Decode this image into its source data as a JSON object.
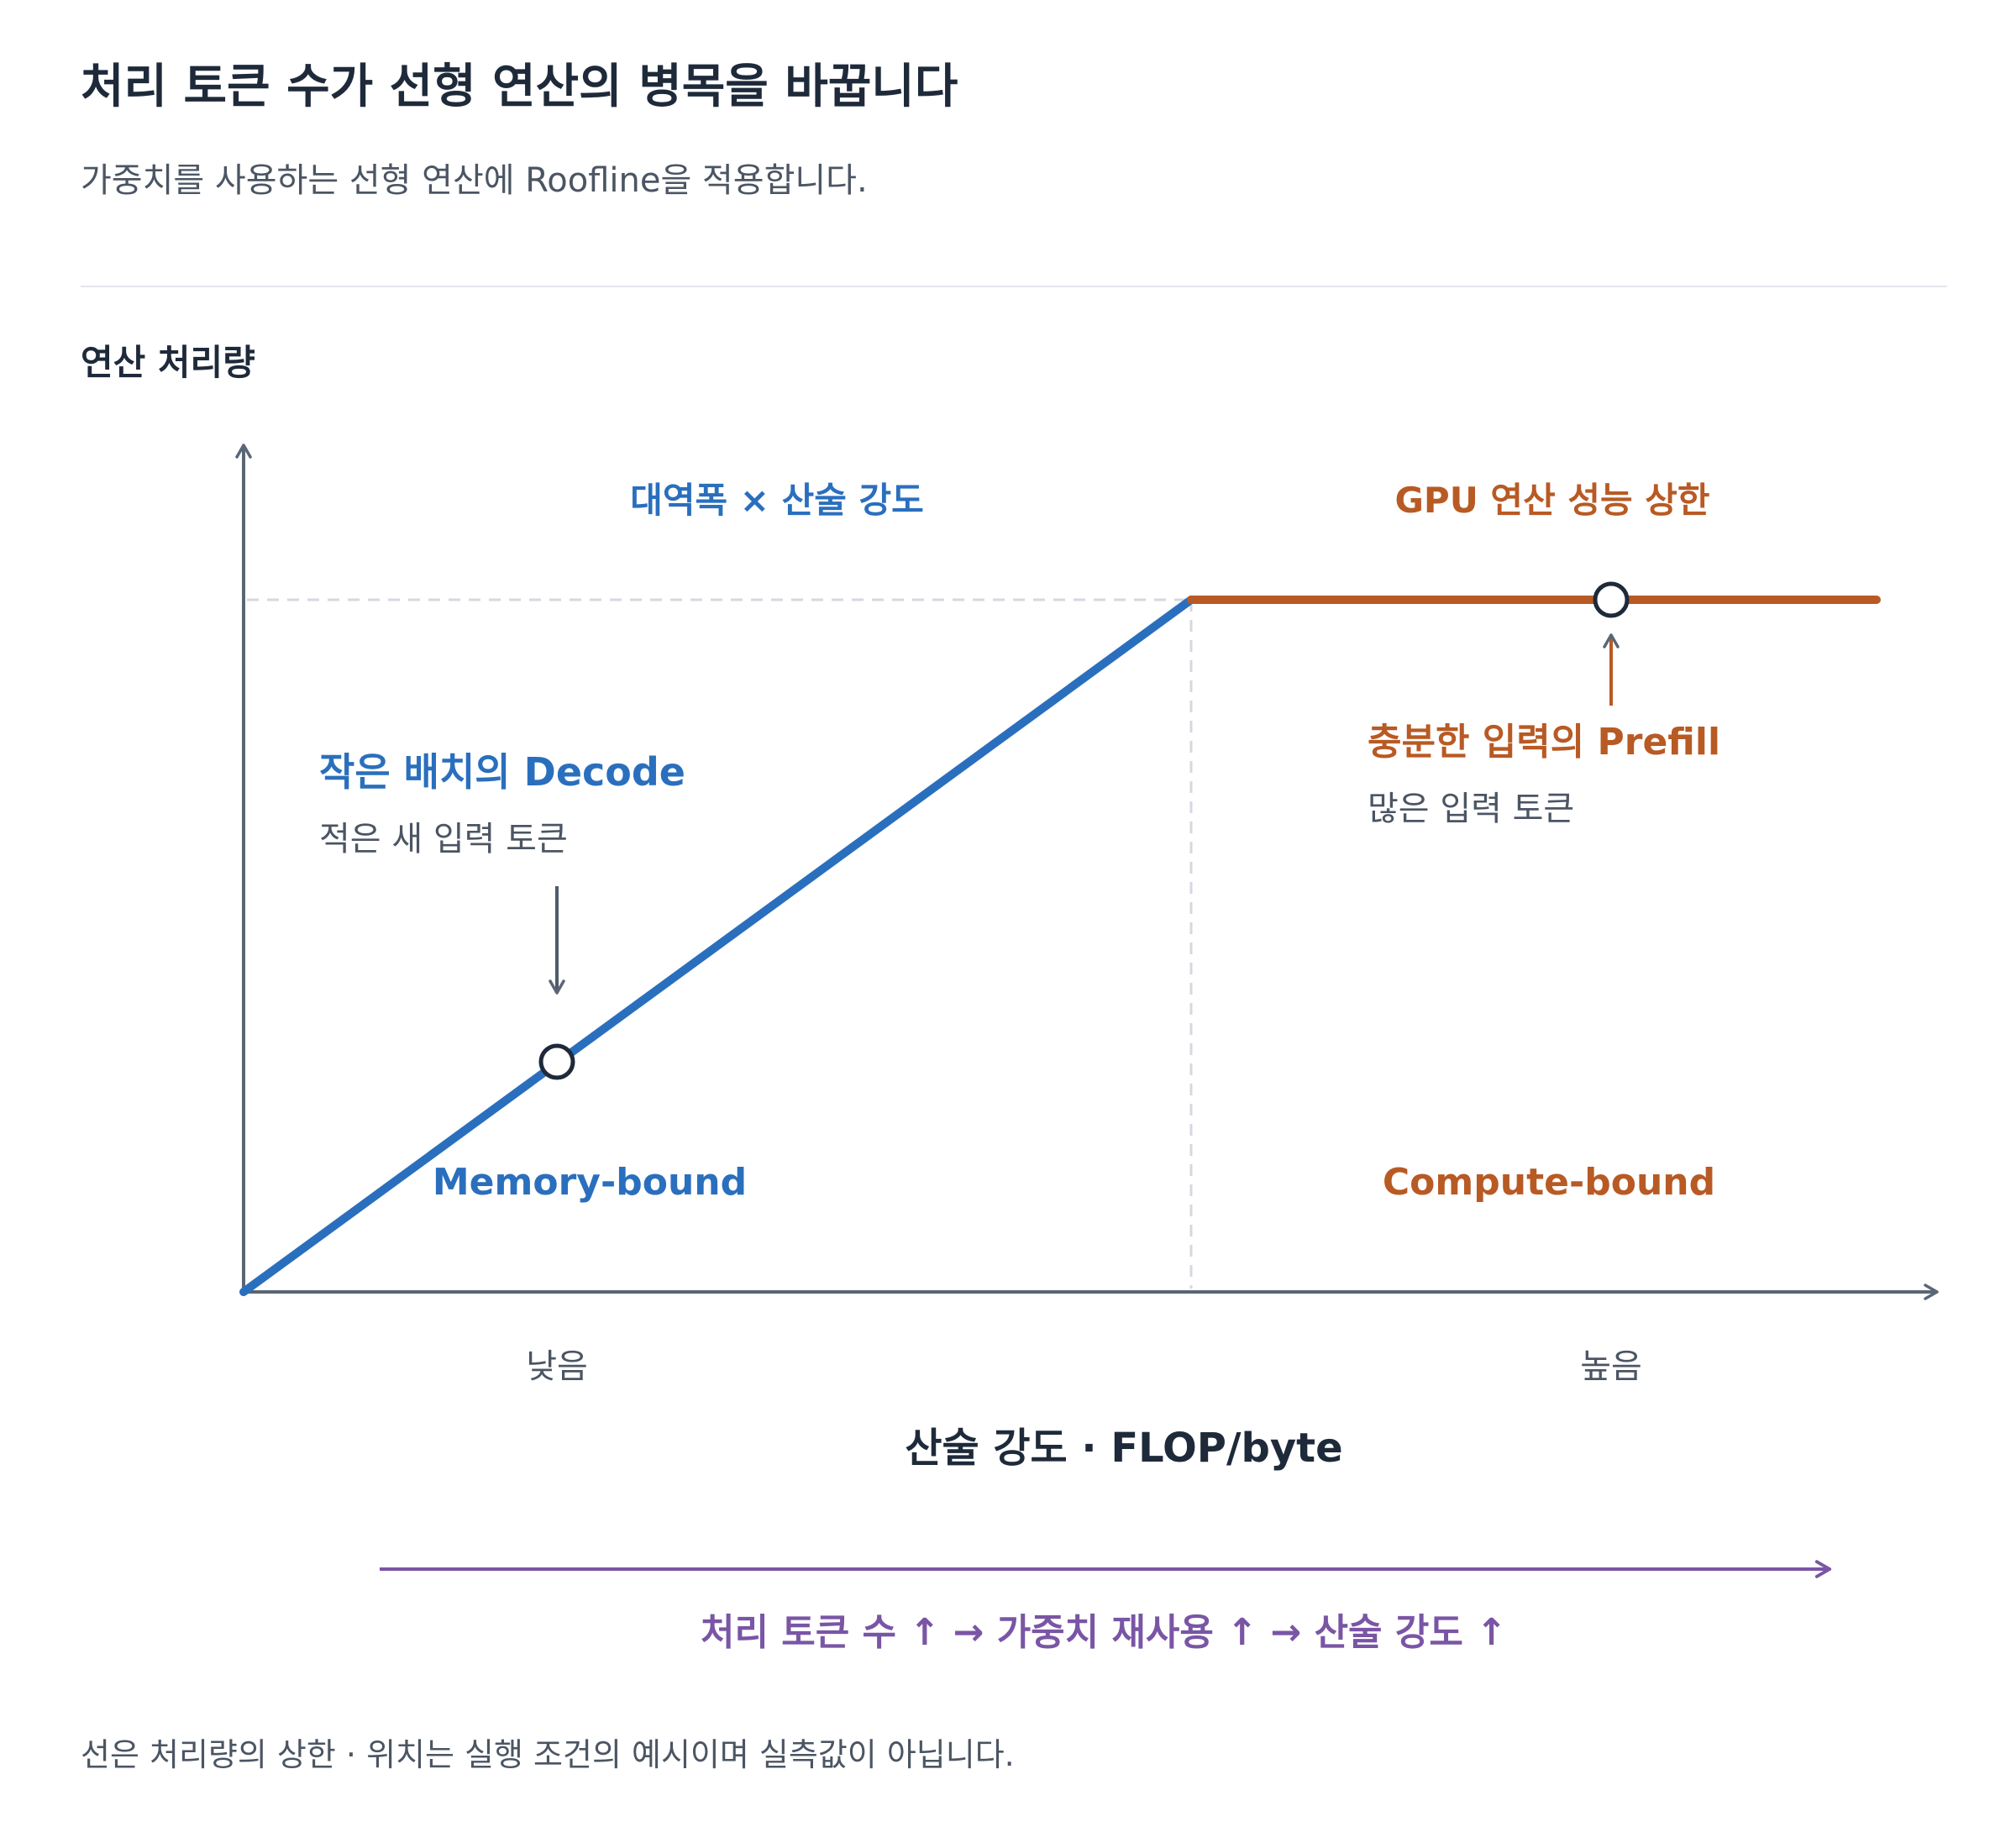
{
  "header": {
    "title": "처리 토큰 수가 선형 연산의 병목을 바꿉니다",
    "subtitle": "가중치를 사용하는 선형 연산에 Roofline을 적용합니다."
  },
  "chart": {
    "y_axis_title": "연산 처리량",
    "x_axis_title": "산술 강도 · FLOP/byte",
    "x_tick_low": "낮음",
    "x_tick_high": "높음",
    "slope_label": "대역폭 × 산술 강도",
    "roof_label": "GPU 연산 성능 상한",
    "decode": {
      "title": "작은 배치의 Decode",
      "subtitle": "적은 새 입력 토큰"
    },
    "prefill": {
      "title": "충분한 입력의 Prefill",
      "subtitle": "많은 입력 토큰"
    },
    "memory_region": "Memory-bound",
    "compute_region": "Compute-bound"
  },
  "flow": {
    "text": "처리 토큰 수 ↑ → 가중치 재사용 ↑ → 산술 강도 ↑"
  },
  "footnote": "선은 처리량의 상한 · 위치는 실행 조건의 예시이며 실측값이 아닙니다.",
  "colors": {
    "memory": "#2a6fbd",
    "compute": "#b85a24",
    "axis": "#5a6675",
    "flow": "#7a55a5"
  }
}
